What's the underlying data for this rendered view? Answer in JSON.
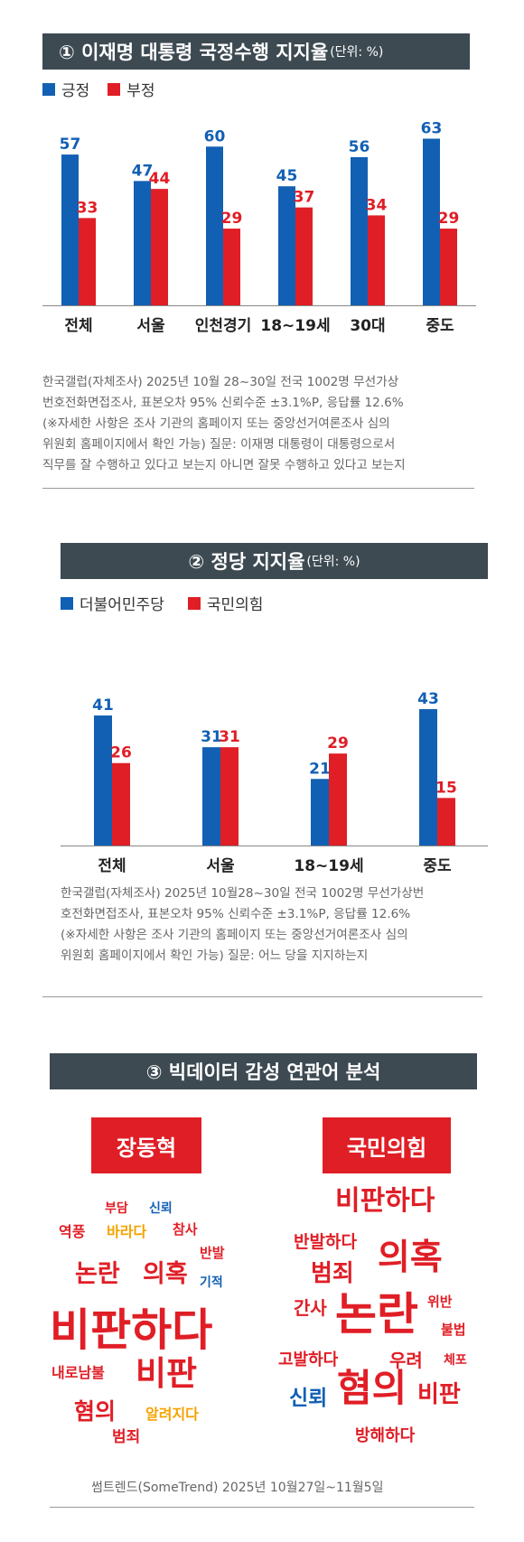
{
  "colors": {
    "positive": "#1260b4",
    "negative": "#e01e26",
    "header": "#3d4a52",
    "word_orange": "#f5a300"
  },
  "section1": {
    "title": "① 이재명 대통령 국정수행 지지율",
    "unit": "(단위: %)",
    "legend": [
      "긍정",
      "부정"
    ],
    "note": [
      "한국갤럽(자체조사) 2025년 10월 28~30일 전국 1002명 무선가상",
      "번호전화면접조사, 표본오차 95% 신뢰수준 ±3.1%P, 응답률 12.6%",
      "(※자세한 사항은 조사 기관의 홈페이지 또는 중앙선거여론조사 심의",
      "위원회 홈페이지에서 확인 가능) 질문: 이재명 대통령이 대통령으로서",
      "직무를 잘 수행하고 있다고 보는지 아니면 잘못 수행하고 있다고 보는지"
    ]
  },
  "section2": {
    "title": "② 정당 지지율",
    "unit": "(단위: %)",
    "legend": [
      "더불어민주당",
      "국민의힘"
    ],
    "note": [
      "한국갤럽(자체조사) 2025년 10월28~30일 전국 1002명 무선가상번",
      "호전화면접조사, 표본오차 95% 신뢰수준 ±3.1%P, 응답률 12.6%",
      "(※자세한 사항은 조사 기관의 홈페이지 또는 중앙선거여론조사 심의",
      "위원회 홈페이지에서 확인 가능) 질문: 어느 당을 지지하는지"
    ]
  },
  "section3": {
    "title": "③ 빅데이터 감성 연관어 분석",
    "left_tag": "장동혁",
    "right_tag": "국민의힘",
    "left_words": [
      {
        "text": "부담",
        "c": "r"
      },
      {
        "text": "신뢰",
        "c": "b"
      },
      {
        "text": "역풍",
        "c": "r"
      },
      {
        "text": "바라다",
        "c": "o"
      },
      {
        "text": "참사",
        "c": "r"
      },
      {
        "text": "반발",
        "c": "r"
      },
      {
        "text": "논란",
        "c": "r"
      },
      {
        "text": "의혹",
        "c": "r"
      },
      {
        "text": "기적",
        "c": "b"
      },
      {
        "text": "비판하다",
        "c": "r"
      },
      {
        "text": "내로남불",
        "c": "r"
      },
      {
        "text": "비판",
        "c": "r"
      },
      {
        "text": "혐의",
        "c": "r"
      },
      {
        "text": "알려지다",
        "c": "o"
      },
      {
        "text": "범죄",
        "c": "r"
      }
    ],
    "right_words": [
      {
        "text": "비판하다",
        "c": "r"
      },
      {
        "text": "반발하다",
        "c": "r"
      },
      {
        "text": "의혹",
        "c": "r"
      },
      {
        "text": "범죄",
        "c": "r"
      },
      {
        "text": "위반",
        "c": "r"
      },
      {
        "text": "간사",
        "c": "r"
      },
      {
        "text": "논란",
        "c": "r"
      },
      {
        "text": "불법",
        "c": "r"
      },
      {
        "text": "고발하다",
        "c": "r"
      },
      {
        "text": "우려",
        "c": "r"
      },
      {
        "text": "체포",
        "c": "r"
      },
      {
        "text": "신뢰",
        "c": "b"
      },
      {
        "text": "혐의",
        "c": "r"
      },
      {
        "text": "비판",
        "c": "r"
      },
      {
        "text": "방해하다",
        "c": "r"
      }
    ],
    "footer": "썸트렌드(SomeTrend) 2025년 10월27일~11월5일"
  },
  "chart_data": [
    {
      "type": "bar",
      "title": "① 이재명 대통령 국정수행 지지율",
      "ylabel": "",
      "categories": [
        "전체",
        "서울",
        "인천경기",
        "18~19세",
        "30대",
        "중도"
      ],
      "series": [
        {
          "name": "긍정",
          "values": [
            57,
            47,
            60,
            45,
            56,
            63
          ]
        },
        {
          "name": "부정",
          "values": [
            33,
            44,
            29,
            37,
            34,
            29
          ]
        }
      ],
      "ylim": [
        0,
        70
      ]
    },
    {
      "type": "bar",
      "title": "② 정당 지지율",
      "ylabel": "",
      "categories": [
        "전체",
        "서울",
        "18~19세",
        "중도"
      ],
      "series": [
        {
          "name": "더불어민주당",
          "values": [
            41,
            31,
            21,
            43
          ]
        },
        {
          "name": "국민의힘",
          "values": [
            26,
            31,
            29,
            15
          ]
        }
      ],
      "ylim": [
        0,
        45
      ]
    }
  ]
}
